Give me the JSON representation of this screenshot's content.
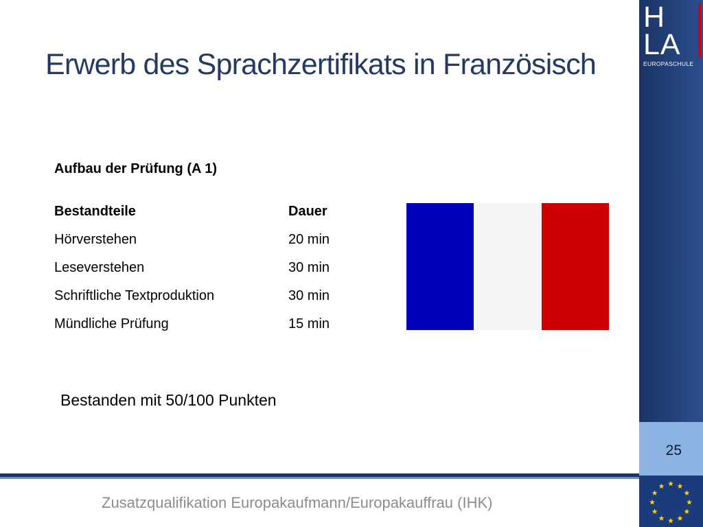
{
  "slide": {
    "title": "Erwerb des Sprachzertifikats in Französisch",
    "subheading": "Aufbau der Prüfung (A 1)",
    "table": {
      "headers": [
        "Bestandteile",
        "Dauer"
      ],
      "rows": [
        [
          "Hörverstehen",
          "20 min"
        ],
        [
          "Leseverstehen",
          "30 min"
        ],
        [
          "Schriftliche Textproduktion",
          "30 min"
        ],
        [
          "Mündliche Prüfung",
          "15 min"
        ]
      ]
    },
    "result": "Bestanden mit 50/100 Punkten",
    "flag": {
      "colors": [
        "#0000bb",
        "#f5f5f5",
        "#cc0000"
      ]
    },
    "page_number": "25",
    "footer": "Zusatzqualifikation Europakaufmann/Europakauffrau (IHK)"
  },
  "logo": {
    "line1": "H",
    "line2": "LA",
    "subtitle": "EUROPASCHULE"
  },
  "colors": {
    "title": "#243a63",
    "sidebar": "#1b3466",
    "page_box": "#8db3e2",
    "eu_blue": "#1b3b7a",
    "eu_star": "#ffd600",
    "logo_accent": "#d0021b"
  }
}
